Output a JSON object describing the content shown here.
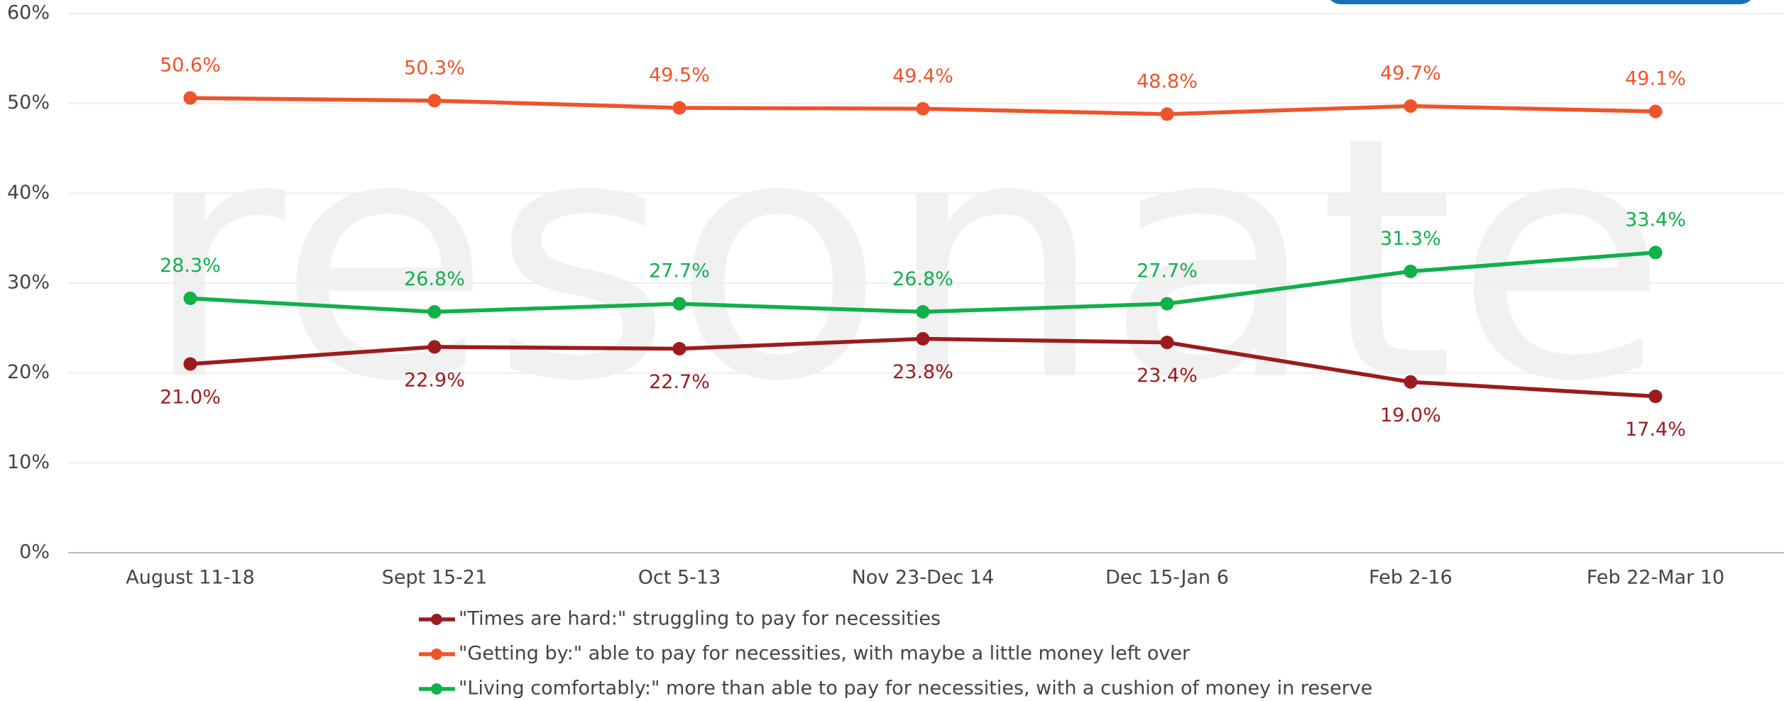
{
  "chart_data": {
    "type": "line",
    "watermark": "resonate",
    "categories": [
      "August 11-18",
      "Sept 15-21",
      "Oct 5-13",
      "Nov 23-Dec 14",
      "Dec 15-Jan 6",
      "Feb 2-16",
      "Feb 22-Mar 10"
    ],
    "series": [
      {
        "name": "\"Times are hard:\" struggling to pay for necessities",
        "color": "#9b1b1e",
        "values": [
          21.0,
          22.9,
          22.7,
          23.8,
          23.4,
          19.0,
          17.4
        ],
        "value_labels": [
          "21.0%",
          "22.9%",
          "22.7%",
          "23.8%",
          "23.4%",
          "19.0%",
          "17.4%"
        ]
      },
      {
        "name": "\"Getting by:\" able to pay for necessities, with maybe a little money left over",
        "color": "#f0532a",
        "values": [
          50.6,
          50.3,
          49.5,
          49.4,
          48.8,
          49.7,
          49.1
        ],
        "value_labels": [
          "50.6%",
          "50.3%",
          "49.5%",
          "49.4%",
          "48.8%",
          "49.7%",
          "49.1%"
        ]
      },
      {
        "name": "\"Living comfortably:\" more than able to pay for necessities, with a cushion of money in reserve",
        "color": "#10b04a",
        "values": [
          28.3,
          26.8,
          27.7,
          26.8,
          27.7,
          31.3,
          33.4
        ],
        "value_labels": [
          "28.3%",
          "26.8%",
          "27.7%",
          "26.8%",
          "27.7%",
          "31.3%",
          "33.4%"
        ]
      }
    ],
    "ylim": [
      0,
      60
    ],
    "yticks": [
      {
        "value": 0,
        "label": "0%"
      },
      {
        "value": 10,
        "label": "10%"
      },
      {
        "value": 20,
        "label": "20%"
      },
      {
        "value": 30,
        "label": "30%"
      },
      {
        "value": 40,
        "label": "40%"
      },
      {
        "value": 50,
        "label": "50%"
      },
      {
        "value": 60,
        "label": "60%"
      }
    ],
    "grid": true
  }
}
